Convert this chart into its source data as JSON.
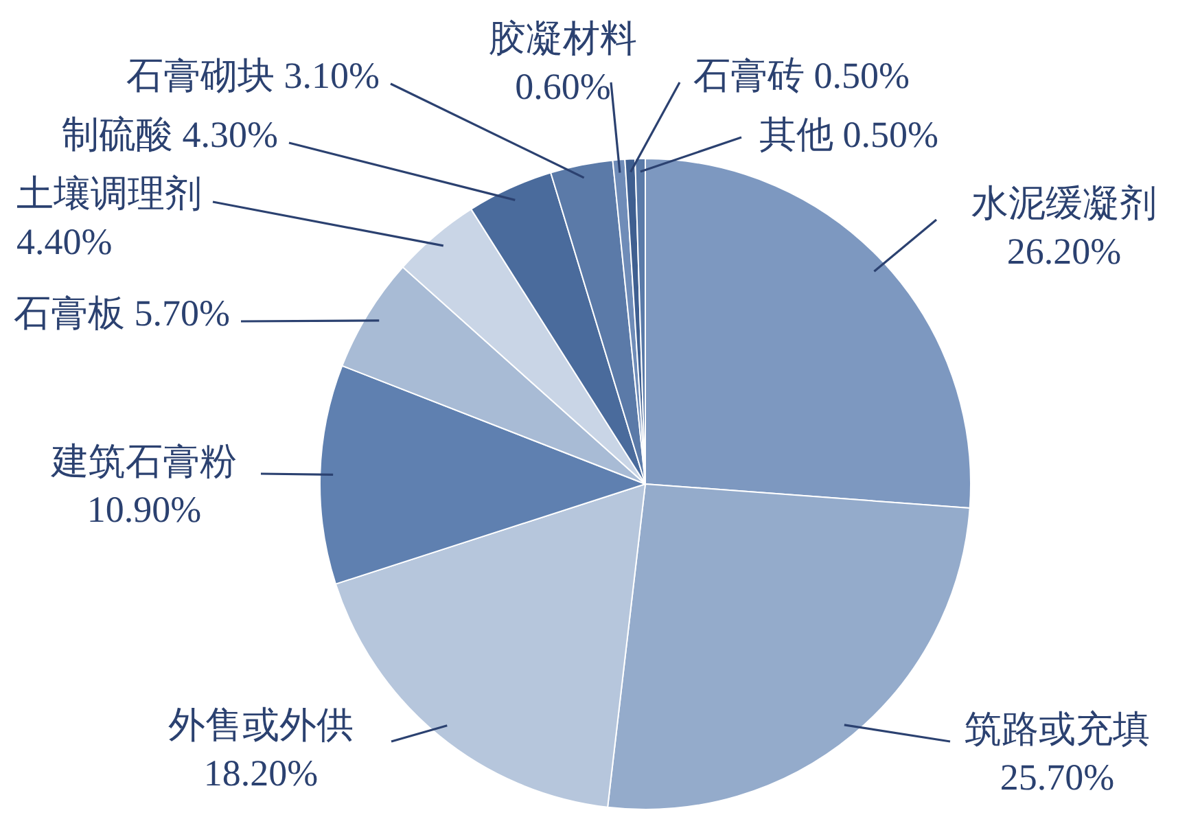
{
  "chart_data": {
    "type": "pie",
    "categories": [
      "水泥缓凝剂",
      "筑路或充填",
      "外售或外供",
      "建筑石膏粉",
      "石膏板",
      "土壤调理剂",
      "制硫酸",
      "石膏砌块",
      "胶凝材料",
      "石膏砖",
      "其他"
    ],
    "values": [
      26.2,
      25.7,
      18.2,
      10.9,
      5.7,
      4.4,
      4.3,
      3.1,
      0.6,
      0.5,
      0.5
    ],
    "value_labels": [
      "26.20%",
      "25.70%",
      "18.20%",
      "10.90%",
      "5.70%",
      "4.40%",
      "4.30%",
      "3.10%",
      "0.60%",
      "0.50%",
      "0.50%"
    ],
    "colors": [
      "#7d98c0",
      "#94abcb",
      "#b6c6dc",
      "#5f80b0",
      "#a8bbd5",
      "#c9d5e6",
      "#4a6b9c",
      "#5b7aa8",
      "#6f8cb8",
      "#3f5f90",
      "#5a7aa8"
    ],
    "legend": false
  }
}
